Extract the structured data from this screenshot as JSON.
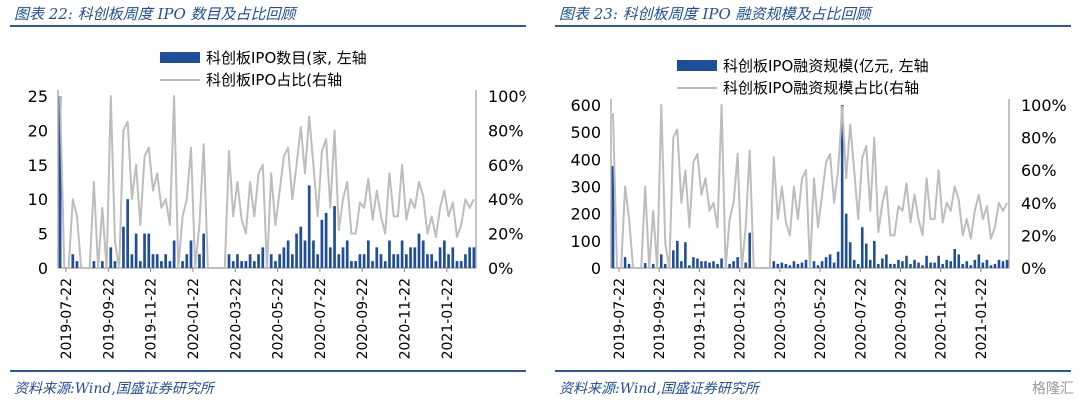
{
  "charts": {
    "left": {
      "title": "图表 22:  科创板周度 IPO 数目及占比回顾",
      "source": "资料来源:Wind,国盛证券研究所"
    },
    "right": {
      "title": "图表 23:  科创板周度 IPO 融资规模及占比回顾",
      "source": "资料来源:Wind,国盛证券研究所"
    }
  },
  "watermark": "格隆汇",
  "colors": {
    "bar": "#1f4e9c",
    "line": "#bdbdbd",
    "rule": "#2b59a6"
  },
  "chart_data": [
    {
      "type": "bar+line",
      "legend": [
        "科创板IPO数目(家,  左轴",
        "科创板IPO占比(右轴"
      ],
      "legend_placement": "top-center",
      "y_left_ticks": [
        "0",
        "5",
        "10",
        "15",
        "20",
        "25"
      ],
      "ylim_left": [
        0,
        25
      ],
      "y_right_ticks": [
        "0%",
        "20%",
        "40%",
        "60%",
        "80%",
        "100%"
      ],
      "ylim_right": [
        0,
        100
      ],
      "x_tick_labels": [
        "2019-07-22",
        "2019-09-22",
        "2019-11-22",
        "2020-01-22",
        "2020-03-22",
        "2020-05-22",
        "2020-07-22",
        "2020-09-22",
        "2020-11-22",
        "2021-01-22"
      ],
      "bars": [
        25,
        0,
        0,
        2,
        1,
        0,
        0,
        0,
        1,
        0,
        1,
        0,
        3,
        1,
        0,
        6,
        10,
        2,
        5,
        1,
        5,
        5,
        2,
        2,
        1,
        2,
        1,
        4,
        0,
        1,
        2,
        4,
        0,
        2,
        5,
        0,
        0,
        0,
        0,
        0,
        2,
        1,
        2,
        1,
        1,
        2,
        1,
        2,
        3,
        0,
        2,
        1,
        2,
        3,
        4,
        2,
        5,
        6,
        4,
        12,
        4,
        2,
        7,
        8,
        3,
        9,
        2,
        3,
        4,
        1,
        1,
        2,
        2,
        4,
        1,
        3,
        2,
        1,
        4,
        2,
        2,
        4,
        2,
        3,
        3,
        5,
        4,
        2,
        2,
        1,
        3,
        4,
        2,
        3,
        1,
        1,
        2,
        3,
        3
      ],
      "line": [
        100,
        0,
        0,
        40,
        30,
        0,
        0,
        0,
        50,
        0,
        35,
        0,
        100,
        15,
        0,
        80,
        85,
        40,
        60,
        25,
        65,
        70,
        45,
        55,
        35,
        40,
        25,
        100,
        0,
        30,
        40,
        70,
        0,
        25,
        72,
        0,
        0,
        0,
        0,
        0,
        68,
        30,
        50,
        28,
        20,
        50,
        30,
        55,
        60,
        0,
        55,
        25,
        45,
        65,
        70,
        40,
        60,
        82,
        55,
        88,
        60,
        30,
        68,
        75,
        35,
        80,
        22,
        40,
        50,
        20,
        20,
        38,
        35,
        52,
        28,
        45,
        30,
        20,
        55,
        30,
        30,
        60,
        28,
        40,
        35,
        50,
        42,
        20,
        30,
        18,
        35,
        45,
        30,
        38,
        18,
        25,
        40,
        35,
        40
      ]
    },
    {
      "type": "bar+line",
      "legend": [
        "科创板IPO融资规模(亿元,  左轴",
        "科创板IPO融资规模占比(右轴"
      ],
      "legend_placement": "top-center",
      "y_left_ticks": [
        "0",
        "100",
        "200",
        "300",
        "400",
        "500",
        "600"
      ],
      "ylim_left": [
        0,
        600
      ],
      "y_right_ticks": [
        "0%",
        "20%",
        "40%",
        "60%",
        "80%",
        "100%"
      ],
      "ylim_right": [
        0,
        100
      ],
      "x_tick_labels": [
        "2019-07-22",
        "2019-09-22",
        "2019-11-22",
        "2020-01-22",
        "2020-03-22",
        "2020-05-22",
        "2020-07-22",
        "2020-09-22",
        "2020-11-22",
        "2021-01-22"
      ],
      "bars": [
        375,
        0,
        0,
        40,
        15,
        0,
        0,
        0,
        18,
        0,
        15,
        0,
        50,
        15,
        0,
        65,
        100,
        25,
        95,
        10,
        40,
        35,
        25,
        25,
        20,
        25,
        15,
        35,
        0,
        15,
        25,
        40,
        0,
        20,
        130,
        0,
        0,
        0,
        0,
        0,
        25,
        15,
        20,
        15,
        10,
        25,
        15,
        20,
        30,
        0,
        25,
        10,
        25,
        40,
        50,
        20,
        60,
        600,
        200,
        95,
        30,
        15,
        150,
        90,
        30,
        100,
        15,
        35,
        50,
        15,
        15,
        30,
        25,
        45,
        15,
        30,
        20,
        10,
        45,
        20,
        20,
        45,
        15,
        30,
        25,
        70,
        50,
        15,
        25,
        10,
        30,
        50,
        20,
        30,
        10,
        15,
        30,
        25,
        30
      ],
      "line": [
        95,
        0,
        0,
        50,
        30,
        0,
        0,
        0,
        50,
        0,
        35,
        0,
        100,
        15,
        0,
        80,
        85,
        40,
        60,
        25,
        65,
        70,
        45,
        55,
        35,
        40,
        25,
        100,
        0,
        30,
        40,
        70,
        0,
        25,
        72,
        0,
        0,
        0,
        0,
        0,
        68,
        30,
        50,
        28,
        20,
        50,
        30,
        55,
        60,
        0,
        55,
        25,
        45,
        65,
        70,
        40,
        60,
        99,
        55,
        88,
        60,
        30,
        68,
        75,
        35,
        80,
        22,
        40,
        50,
        20,
        20,
        38,
        35,
        52,
        28,
        45,
        30,
        20,
        55,
        30,
        30,
        60,
        28,
        40,
        35,
        50,
        42,
        20,
        30,
        18,
        35,
        45,
        30,
        38,
        18,
        25,
        40,
        35,
        40
      ]
    }
  ]
}
